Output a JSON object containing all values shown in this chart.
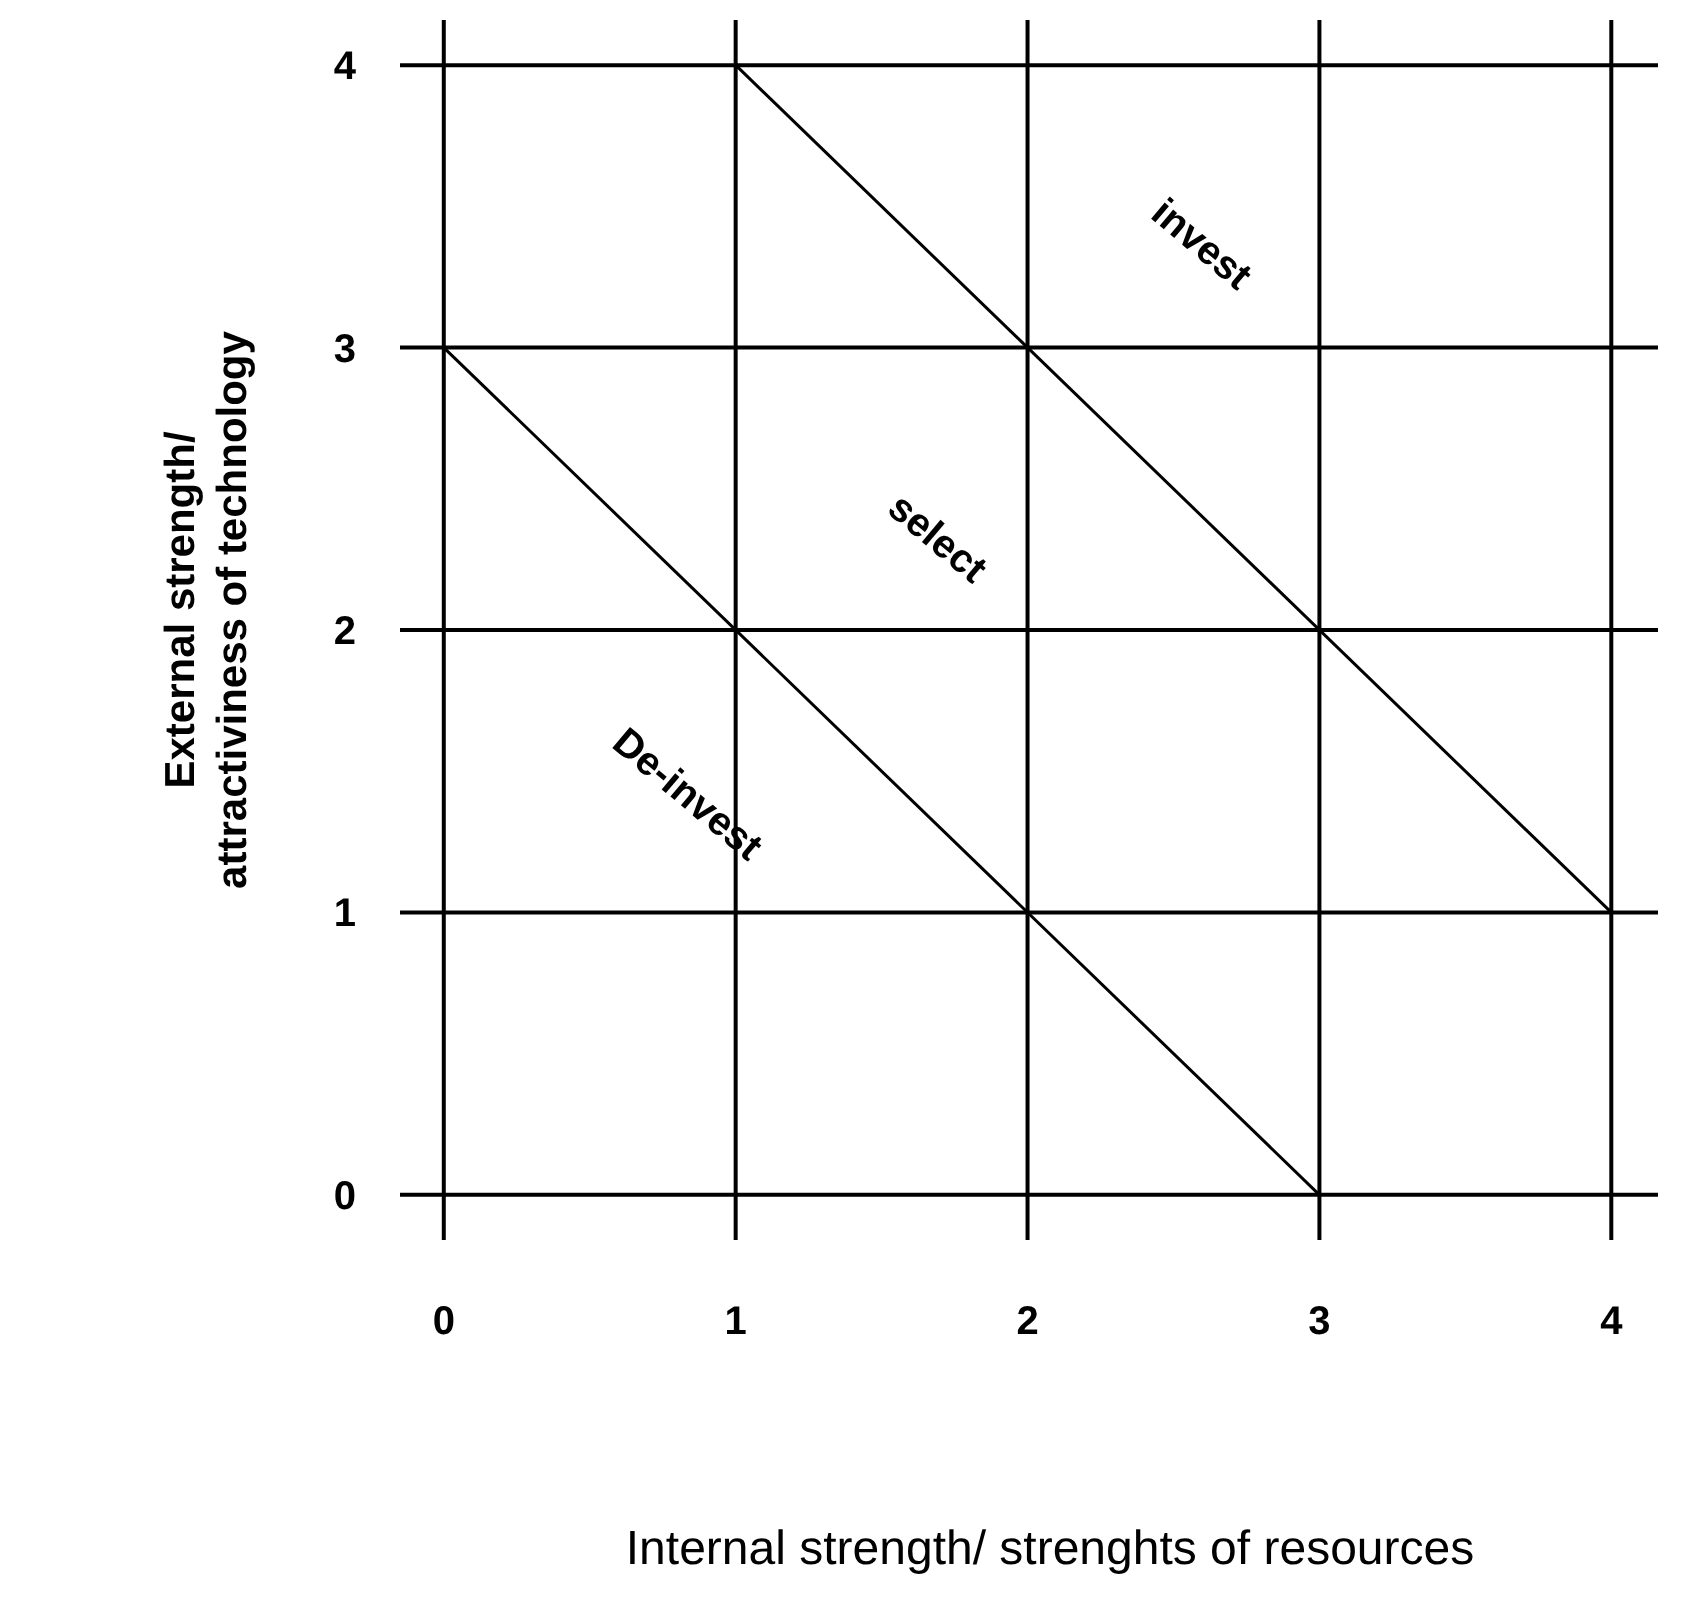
{
  "chart_data": {
    "type": "line",
    "xlabel": "Internal strength/ strenghts of resources",
    "ylabel": "External strength/\nattractiviness of technology",
    "series": [
      {
        "color": "#000000",
        "x": [
          0,
          3
        ],
        "values": [
          3,
          0
        ]
      },
      {
        "color": "#000000",
        "x": [
          1,
          4
        ],
        "values": [
          4,
          1
        ]
      }
    ],
    "xlim": [
      -0.15,
      4.16
    ],
    "ylim": [
      -0.16,
      4.16
    ],
    "xticks": [
      0,
      1,
      2,
      3,
      4
    ],
    "yticks": [
      0,
      1,
      2,
      3,
      4
    ],
    "grid": true,
    "marker": "none",
    "line_style": "solid",
    "annotations": [
      "invest",
      "select",
      "De-invest"
    ]
  }
}
